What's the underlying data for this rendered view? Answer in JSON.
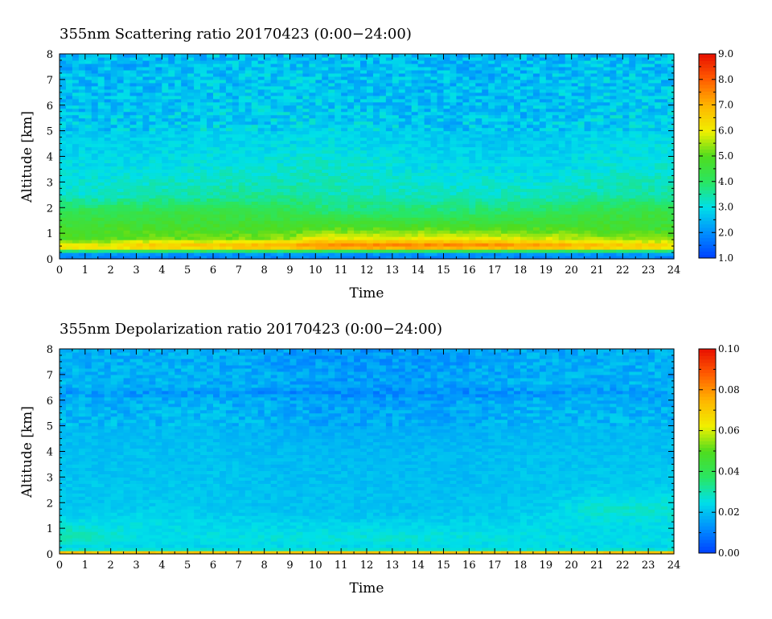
{
  "chart_data": [
    {
      "type": "heatmap",
      "title": "355nm Scattering ratio  20170423 (0:00−24:00)",
      "xlabel": "Time",
      "ylabel": "Altitude [km]",
      "xlim": [
        0,
        24
      ],
      "ylim": [
        0,
        8
      ],
      "xticks": [
        0,
        1,
        2,
        3,
        4,
        5,
        6,
        7,
        8,
        9,
        10,
        11,
        12,
        13,
        14,
        15,
        16,
        17,
        18,
        19,
        20,
        21,
        22,
        23,
        24
      ],
      "yticks": [
        0,
        1,
        2,
        3,
        4,
        5,
        6,
        7,
        8
      ],
      "colorbar": {
        "min": 1.0,
        "max": 9.0,
        "ticks": [
          "1.0",
          "2.0",
          "3.0",
          "4.0",
          "5.0",
          "6.0",
          "7.0",
          "8.0",
          "9.0"
        ]
      },
      "times": [
        0,
        2,
        3,
        6,
        9,
        10,
        14,
        16,
        19,
        21,
        24
      ],
      "profile_altitudes": [
        0,
        0.25,
        0.4,
        0.55,
        0.8,
        1.2,
        1.8,
        2.5,
        3.5,
        4.5,
        6,
        8
      ],
      "profiles": [
        [
          1.8,
          2.2,
          6.0,
          6.0,
          4.9,
          4.7,
          4.3,
          3.2,
          3.0,
          2.8,
          2.6,
          2.5
        ],
        [
          1.8,
          2.2,
          6.0,
          6.0,
          5.0,
          4.8,
          4.3,
          3.2,
          3.0,
          2.8,
          2.6,
          2.5
        ],
        [
          1.8,
          2.2,
          6.2,
          6.5,
          5.2,
          4.8,
          4.4,
          3.4,
          3.0,
          2.8,
          2.6,
          2.5
        ],
        [
          1.8,
          2.2,
          6.3,
          6.7,
          5.2,
          4.8,
          4.4,
          3.5,
          3.1,
          2.9,
          2.7,
          2.6
        ],
        [
          1.8,
          2.2,
          6.5,
          7.0,
          5.4,
          4.8,
          4.3,
          3.6,
          3.2,
          2.9,
          2.7,
          2.6
        ],
        [
          1.8,
          2.2,
          6.8,
          7.5,
          6.0,
          5.0,
          4.0,
          3.4,
          3.3,
          3.0,
          2.7,
          2.6
        ],
        [
          1.8,
          2.2,
          6.8,
          7.5,
          6.0,
          5.0,
          3.9,
          3.3,
          3.0,
          2.8,
          2.6,
          2.5
        ],
        [
          1.8,
          2.2,
          6.8,
          7.5,
          6.0,
          5.0,
          3.9,
          3.3,
          3.0,
          2.7,
          2.6,
          2.5
        ],
        [
          1.8,
          2.2,
          6.6,
          7.2,
          5.8,
          4.9,
          4.1,
          3.3,
          2.9,
          2.7,
          2.6,
          2.5
        ],
        [
          1.8,
          2.2,
          6.4,
          6.8,
          5.5,
          4.8,
          4.4,
          3.5,
          3.1,
          2.9,
          2.7,
          2.6
        ],
        [
          1.8,
          2.2,
          6.0,
          6.3,
          5.2,
          4.7,
          4.4,
          3.5,
          3.2,
          3.0,
          2.7,
          2.6
        ]
      ]
    },
    {
      "type": "heatmap",
      "title": "355nm Depolarization ratio  20170423 (0:00−24:00)",
      "xlabel": "Time",
      "ylabel": "Altitude [km]",
      "xlim": [
        0,
        24
      ],
      "ylim": [
        0,
        8
      ],
      "xticks": [
        0,
        1,
        2,
        3,
        4,
        5,
        6,
        7,
        8,
        9,
        10,
        11,
        12,
        13,
        14,
        15,
        16,
        17,
        18,
        19,
        20,
        21,
        22,
        23,
        24
      ],
      "yticks": [
        0,
        1,
        2,
        3,
        4,
        5,
        6,
        7,
        8
      ],
      "colorbar": {
        "min": 0.0,
        "max": 0.1,
        "ticks": [
          "0.00",
          "0.02",
          "0.04",
          "0.06",
          "0.08",
          "0.10"
        ]
      },
      "times": [
        0,
        2,
        3,
        6,
        9,
        10,
        14,
        16,
        19,
        21,
        24
      ],
      "profile_altitudes": [
        0,
        0.05,
        0.12,
        0.2,
        0.35,
        0.6,
        1.0,
        1.5,
        1.8,
        2.5,
        4,
        6,
        6.3,
        6.6,
        8
      ],
      "profiles": [
        [
          0.075,
          0.075,
          0.055,
          0.022,
          0.025,
          0.03,
          0.029,
          0.022,
          0.021,
          0.021,
          0.02,
          0.018,
          0.014,
          0.018,
          0.017
        ],
        [
          0.075,
          0.075,
          0.055,
          0.022,
          0.025,
          0.028,
          0.026,
          0.023,
          0.021,
          0.021,
          0.02,
          0.018,
          0.014,
          0.018,
          0.017
        ],
        [
          0.075,
          0.075,
          0.055,
          0.022,
          0.024,
          0.025,
          0.025,
          0.024,
          0.022,
          0.021,
          0.02,
          0.018,
          0.014,
          0.018,
          0.017
        ],
        [
          0.075,
          0.075,
          0.055,
          0.022,
          0.024,
          0.025,
          0.024,
          0.022,
          0.021,
          0.021,
          0.02,
          0.018,
          0.014,
          0.018,
          0.017
        ],
        [
          0.075,
          0.075,
          0.055,
          0.022,
          0.024,
          0.026,
          0.024,
          0.022,
          0.02,
          0.02,
          0.019,
          0.016,
          0.012,
          0.016,
          0.015
        ],
        [
          0.075,
          0.075,
          0.055,
          0.022,
          0.024,
          0.027,
          0.024,
          0.021,
          0.02,
          0.02,
          0.019,
          0.015,
          0.012,
          0.015,
          0.014
        ],
        [
          0.075,
          0.075,
          0.055,
          0.022,
          0.024,
          0.027,
          0.024,
          0.021,
          0.02,
          0.02,
          0.019,
          0.015,
          0.012,
          0.015,
          0.014
        ],
        [
          0.075,
          0.075,
          0.055,
          0.022,
          0.024,
          0.026,
          0.024,
          0.021,
          0.021,
          0.02,
          0.019,
          0.016,
          0.012,
          0.016,
          0.015
        ],
        [
          0.075,
          0.075,
          0.055,
          0.022,
          0.024,
          0.025,
          0.024,
          0.023,
          0.022,
          0.021,
          0.02,
          0.018,
          0.014,
          0.018,
          0.017
        ],
        [
          0.075,
          0.075,
          0.055,
          0.022,
          0.024,
          0.025,
          0.024,
          0.026,
          0.028,
          0.022,
          0.02,
          0.018,
          0.014,
          0.018,
          0.017
        ],
        [
          0.075,
          0.075,
          0.055,
          0.022,
          0.024,
          0.025,
          0.024,
          0.026,
          0.028,
          0.022,
          0.02,
          0.018,
          0.014,
          0.018,
          0.017
        ]
      ]
    }
  ]
}
